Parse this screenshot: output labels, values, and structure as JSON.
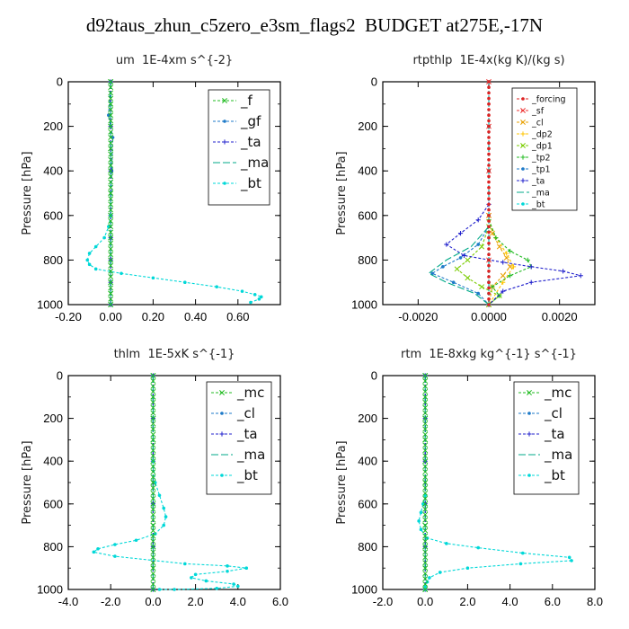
{
  "figure": {
    "title": "d92taus_zhun_c5zero_e3sm_flags2  BUDGET at275E,-17N"
  },
  "chart_data": [
    {
      "type": "line",
      "title": "um  1E-4xm s^{-2}",
      "ylabel": "Pressure [hPa]",
      "xlabel": "",
      "xlim": [
        -0.2,
        0.8
      ],
      "ylim": [
        1000,
        0
      ],
      "xticks": [
        "-0.20",
        "0.00",
        "0.20",
        "0.40",
        "0.60"
      ],
      "yticks": [
        "0",
        "200",
        "400",
        "600",
        "800",
        "1000"
      ],
      "legend_position": "top-right",
      "series": [
        {
          "name": "_f",
          "color": "#22bb22",
          "marker": "x",
          "dash": "3,2",
          "x": [
            0,
            0,
            0,
            0,
            0,
            0,
            0,
            0,
            0,
            0,
            0,
            0
          ],
          "y": [
            0,
            100,
            200,
            300,
            400,
            500,
            600,
            700,
            800,
            900,
            950,
            1000
          ]
        },
        {
          "name": "_gf",
          "color": "#1e7ac8",
          "marker": "dot",
          "dash": "3,2",
          "x": [
            0,
            -0.01,
            0.01,
            0.005,
            0.0,
            0.0,
            0.0
          ],
          "y": [
            0,
            150,
            250,
            400,
            600,
            700,
            1000
          ]
        },
        {
          "name": "_ta",
          "color": "#2020cc",
          "marker": "plus",
          "dash": "3,2",
          "x": [
            0,
            0,
            0,
            0,
            0,
            0,
            0,
            0
          ],
          "y": [
            0,
            200,
            400,
            600,
            700,
            800,
            900,
            1000
          ]
        },
        {
          "name": "_ma",
          "color": "#00aa88",
          "marker": "none",
          "dash": "8,3",
          "x": [
            0,
            0,
            0,
            0,
            0,
            0
          ],
          "y": [
            0,
            200,
            400,
            600,
            800,
            1000
          ]
        },
        {
          "name": "_bt",
          "color": "#00d8d8",
          "marker": "dot",
          "dash": "3,2",
          "x": [
            0.0,
            -0.01,
            -0.03,
            -0.07,
            -0.1,
            -0.11,
            -0.1,
            -0.07,
            0.05,
            0.2,
            0.35,
            0.5,
            0.62,
            0.68,
            0.71,
            0.7,
            0.66
          ],
          "y": [
            600,
            650,
            700,
            740,
            770,
            800,
            820,
            840,
            860,
            880,
            900,
            920,
            940,
            955,
            965,
            975,
            990
          ]
        }
      ]
    },
    {
      "type": "line",
      "title": "rtpthlp  1E-4x(kg K)/(kg s)",
      "ylabel": "Pressure [hPa]",
      "xlabel": "",
      "xlim": [
        -0.003,
        0.003
      ],
      "ylim": [
        1000,
        0
      ],
      "xticks": [
        "-0.0020",
        "0.0000",
        "0.0020"
      ],
      "yticks": [
        "0",
        "200",
        "400",
        "600",
        "800",
        "1000"
      ],
      "legend_position": "top-right",
      "series": [
        {
          "name": "_forcing",
          "color": "#dd2222",
          "marker": "dot",
          "dash": "3,2",
          "x": [
            0,
            0,
            0,
            0,
            0,
            0,
            0,
            0,
            0,
            0,
            0
          ],
          "y": [
            0,
            100,
            200,
            300,
            400,
            500,
            600,
            700,
            800,
            900,
            1000
          ]
        },
        {
          "name": "_sf",
          "color": "#ee3333",
          "marker": "x",
          "dash": "3,2",
          "x": [
            0,
            0,
            0,
            0,
            0,
            0
          ],
          "y": [
            0,
            200,
            400,
            600,
            800,
            1000
          ]
        },
        {
          "name": "_cl",
          "color": "#e8a000",
          "marker": "x",
          "dash": "3,2",
          "x": [
            0,
            0.0001,
            0.0003,
            0.0005,
            0.0006,
            0.0004,
            0.0001,
            0
          ],
          "y": [
            600,
            680,
            740,
            790,
            830,
            870,
            920,
            1000
          ]
        },
        {
          "name": "_dp2",
          "color": "#ffc400",
          "marker": "plus",
          "dash": "3,2",
          "x": [
            0,
            0.0002,
            0.0005,
            0.0007,
            0.0004,
            0
          ],
          "y": [
            620,
            700,
            770,
            830,
            900,
            1000
          ]
        },
        {
          "name": "_dp1",
          "color": "#7acc00",
          "marker": "x",
          "dash": "3,2",
          "x": [
            0,
            -0.0002,
            -0.0006,
            -0.0009,
            -0.0006,
            -0.0002,
            0.0003,
            0
          ],
          "y": [
            650,
            740,
            800,
            840,
            880,
            920,
            960,
            1000
          ]
        },
        {
          "name": "_tp2",
          "color": "#22bb22",
          "marker": "plus",
          "dash": "3,2",
          "x": [
            0,
            0.0002,
            0.0006,
            0.0011,
            0.0012,
            0.0006,
            0.0001,
            0.0003,
            0
          ],
          "y": [
            620,
            700,
            760,
            800,
            830,
            870,
            920,
            960,
            1000
          ]
        },
        {
          "name": "_tp1",
          "color": "#1e7ac8",
          "marker": "dot",
          "dash": "3,2",
          "x": [
            0,
            -0.0003,
            -0.0008,
            -0.0013,
            -0.0016,
            -0.001,
            -0.0003,
            0
          ],
          "y": [
            650,
            730,
            790,
            830,
            860,
            900,
            950,
            1000
          ]
        },
        {
          "name": "_ta",
          "color": "#2020cc",
          "marker": "plus",
          "dash": "3,2",
          "x": [
            0,
            -0.0003,
            -0.0008,
            -0.0012,
            -0.0007,
            0.0004,
            0.0012,
            0.0021,
            0.0026,
            0.0012,
            0.0004,
            0
          ],
          "y": [
            550,
            620,
            680,
            730,
            780,
            810,
            830,
            850,
            870,
            900,
            940,
            1000
          ]
        },
        {
          "name": "_ma",
          "color": "#00aa88",
          "marker": "none",
          "dash": "8,3",
          "x": [
            0,
            -0.0005,
            -0.0012,
            -0.0017,
            -0.0012,
            -0.0004,
            0
          ],
          "y": [
            650,
            740,
            800,
            860,
            900,
            950,
            1000
          ]
        },
        {
          "name": "_bt",
          "color": "#00d8d8",
          "marker": "dot",
          "dash": "3,2",
          "x": [
            0,
            0,
            0,
            0,
            0,
            0,
            0,
            0,
            0
          ],
          "y": [
            0,
            200,
            400,
            600,
            700,
            800,
            900,
            950,
            1000
          ]
        }
      ]
    },
    {
      "type": "line",
      "title": "thlm  1E-5xK s^{-1}",
      "ylabel": "Pressure [hPa]",
      "xlabel": "",
      "xlim": [
        -4.0,
        6.0
      ],
      "ylim": [
        1000,
        0
      ],
      "xticks": [
        "-4.0",
        "-2.0",
        "0.0",
        "2.0",
        "4.0",
        "6.0"
      ],
      "yticks": [
        "0",
        "200",
        "400",
        "600",
        "800",
        "1000"
      ],
      "legend_position": "top-right",
      "series": [
        {
          "name": "_mc",
          "color": "#22bb22",
          "marker": "x",
          "dash": "3,2",
          "x": [
            0,
            0,
            0,
            0,
            0,
            0,
            0,
            0,
            0,
            0,
            0
          ],
          "y": [
            0,
            100,
            200,
            300,
            400,
            500,
            600,
            700,
            800,
            900,
            1000
          ]
        },
        {
          "name": "_cl",
          "color": "#1e7ac8",
          "marker": "dot",
          "dash": "3,2",
          "x": [
            0,
            0,
            0,
            0,
            0,
            0
          ],
          "y": [
            0,
            200,
            400,
            600,
            800,
            1000
          ]
        },
        {
          "name": "_ta",
          "color": "#2020cc",
          "marker": "plus",
          "dash": "3,2",
          "x": [
            0,
            0,
            0,
            0,
            0,
            0
          ],
          "y": [
            0,
            200,
            400,
            600,
            800,
            1000
          ]
        },
        {
          "name": "_ma",
          "color": "#00aa88",
          "marker": "none",
          "dash": "8,3",
          "x": [
            0,
            0,
            0,
            0,
            0,
            0
          ],
          "y": [
            0,
            200,
            400,
            600,
            800,
            1000
          ]
        },
        {
          "name": "_bt",
          "color": "#00d8d8",
          "marker": "dot",
          "dash": "3,2",
          "x": [
            0.0,
            0.1,
            0.3,
            0.5,
            0.6,
            0.5,
            0.1,
            -0.8,
            -1.8,
            -2.6,
            -2.8,
            -1.8,
            1.5,
            3.5,
            4.4,
            3.5,
            2.0,
            1.8,
            2.5,
            3.8,
            4.0,
            3.0,
            1.0,
            0.3
          ],
          "y": [
            400,
            500,
            560,
            620,
            660,
            700,
            740,
            770,
            790,
            810,
            825,
            845,
            880,
            890,
            900,
            915,
            930,
            945,
            960,
            975,
            985,
            995,
            1000,
            1000
          ]
        }
      ]
    },
    {
      "type": "line",
      "title": "rtm  1E-8xkg kg^{-1} s^{-1}",
      "ylabel": "Pressure [hPa]",
      "xlabel": "",
      "xlim": [
        -2.0,
        8.0
      ],
      "ylim": [
        1000,
        0
      ],
      "xticks": [
        "-2.0",
        "0.0",
        "2.0",
        "4.0",
        "6.0",
        "8.0"
      ],
      "yticks": [
        "0",
        "200",
        "400",
        "600",
        "800",
        "1000"
      ],
      "legend_position": "top-right",
      "series": [
        {
          "name": "_mc",
          "color": "#22bb22",
          "marker": "x",
          "dash": "3,2",
          "x": [
            0,
            0,
            0,
            0,
            0,
            0,
            0,
            0,
            0,
            0,
            0
          ],
          "y": [
            0,
            100,
            200,
            300,
            400,
            500,
            600,
            700,
            800,
            900,
            1000
          ]
        },
        {
          "name": "_cl",
          "color": "#1e7ac8",
          "marker": "dot",
          "dash": "3,2",
          "x": [
            0,
            0,
            0,
            0,
            0,
            0
          ],
          "y": [
            0,
            200,
            400,
            600,
            800,
            1000
          ]
        },
        {
          "name": "_ta",
          "color": "#2020cc",
          "marker": "plus",
          "dash": "3,2",
          "x": [
            0,
            0,
            0,
            0,
            0,
            0
          ],
          "y": [
            0,
            200,
            400,
            600,
            800,
            1000
          ]
        },
        {
          "name": "_ma",
          "color": "#00aa88",
          "marker": "none",
          "dash": "8,3",
          "x": [
            0,
            0,
            0,
            0,
            0,
            0
          ],
          "y": [
            0,
            200,
            400,
            600,
            800,
            1000
          ]
        },
        {
          "name": "_bt",
          "color": "#00d8d8",
          "marker": "dot",
          "dash": "3,2",
          "x": [
            0.0,
            -0.1,
            -0.2,
            -0.3,
            -0.2,
            0.1,
            1.0,
            2.5,
            4.6,
            6.8,
            6.9,
            4.5,
            2.0,
            0.7,
            0.2,
            0.1,
            0.0,
            0.0
          ],
          "y": [
            560,
            600,
            640,
            680,
            720,
            760,
            785,
            805,
            830,
            850,
            865,
            880,
            900,
            920,
            945,
            965,
            985,
            1000
          ]
        }
      ]
    }
  ]
}
